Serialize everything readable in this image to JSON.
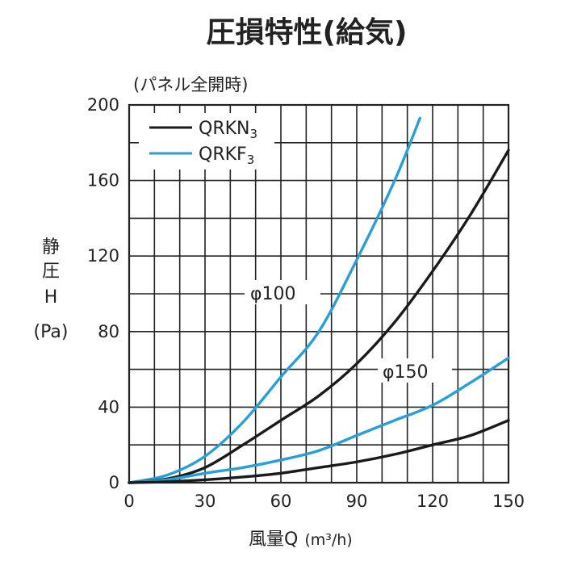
{
  "chart_data": {
    "type": "line",
    "title": "圧損特性(給気)",
    "subtitle": "(パネル全開時)",
    "xlabel": "風量Q",
    "xunit": "(m³/h)",
    "ylabel_lines": [
      "静",
      "圧",
      "H",
      "(Pa)"
    ],
    "xlim": [
      0,
      150
    ],
    "ylim": [
      0,
      200
    ],
    "xticks": [
      0,
      30,
      60,
      90,
      120,
      150
    ],
    "yticks": [
      0,
      40,
      80,
      120,
      160,
      200
    ],
    "grid": true,
    "legend_position": "top-left",
    "legend": [
      {
        "label": "QRKN",
        "subscript": "3",
        "color": "#1a1a1a"
      },
      {
        "label": "QRKF",
        "subscript": "3",
        "color": "#2a9fd6"
      }
    ],
    "annotations": [
      {
        "text": "φ100",
        "near_x": 67,
        "near_y": 100
      },
      {
        "text": "φ150",
        "near_x": 120,
        "near_y": 59
      }
    ],
    "series": [
      {
        "legend": "QRKF",
        "diameter": "φ100",
        "color": "#2a9fd6",
        "x": [
          0,
          15,
          30,
          45,
          60,
          75,
          90,
          105,
          115
        ],
        "y": [
          0,
          4,
          14,
          32,
          56,
          80,
          118,
          160,
          193
        ]
      },
      {
        "legend": "QRKN",
        "diameter": "φ100",
        "color": "#1a1a1a",
        "x": [
          0,
          15,
          30,
          45,
          60,
          75,
          90,
          105,
          120,
          135,
          150
        ],
        "y": [
          0,
          2,
          8,
          20,
          33,
          46,
          63,
          85,
          112,
          142,
          176
        ]
      },
      {
        "legend": "QRKF",
        "diameter": "φ150",
        "color": "#2a9fd6",
        "x": [
          0,
          15,
          30,
          45,
          60,
          75,
          90,
          105,
          120,
          135,
          150
        ],
        "y": [
          0,
          1.5,
          5,
          8,
          12,
          17,
          25,
          33,
          41,
          53,
          66
        ]
      },
      {
        "legend": "QRKN",
        "diameter": "φ150",
        "color": "#1a1a1a",
        "x": [
          0,
          15,
          30,
          45,
          60,
          75,
          90,
          105,
          120,
          135,
          150
        ],
        "y": [
          0,
          0.5,
          1.5,
          3,
          5,
          8,
          11,
          15,
          20,
          25,
          33
        ]
      }
    ]
  }
}
